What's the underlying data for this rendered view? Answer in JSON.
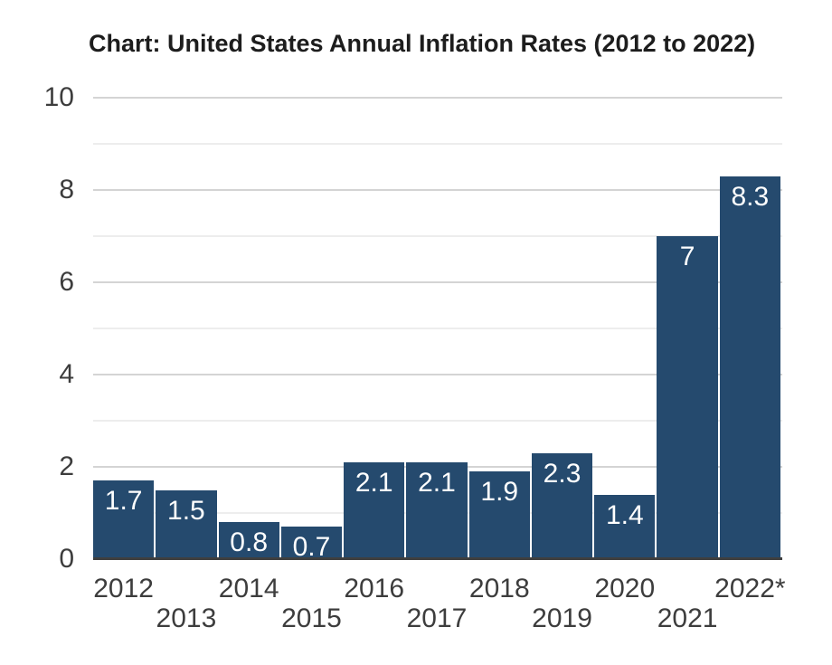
{
  "page": {
    "background": "#ffffff"
  },
  "chart_data": {
    "type": "bar",
    "title": "Chart: United States Annual Inflation Rates (2012 to 2022)",
    "categories": [
      "2012",
      "2013",
      "2014",
      "2015",
      "2016",
      "2017",
      "2018",
      "2019",
      "2020",
      "2021",
      "2022*"
    ],
    "values": [
      1.7,
      1.5,
      0.8,
      0.7,
      2.1,
      2.1,
      1.9,
      2.3,
      1.4,
      7,
      8.3
    ],
    "value_labels": [
      "1.7",
      "1.5",
      "0.8",
      "0.7",
      "2.1",
      "2.1",
      "1.9",
      "2.3",
      "1.4",
      "7",
      "8.3"
    ],
    "xlabel": "",
    "ylabel": "",
    "ylim": [
      0,
      10
    ],
    "ytick_labels": [
      0,
      2,
      4,
      6,
      8,
      10
    ],
    "gridline_step": 1,
    "grid": "horizontal-major-and-minor",
    "legend": "none",
    "x_labels_staggered": true,
    "colors": {
      "bar": "#254a6e",
      "value_label": "#ffffff",
      "axis_text": "#3d3d3d",
      "title_text": "#1d1d1d",
      "grid_major": "#d4d4d4",
      "grid_minor": "#ededed",
      "baseline": "#3f3f3f"
    }
  }
}
